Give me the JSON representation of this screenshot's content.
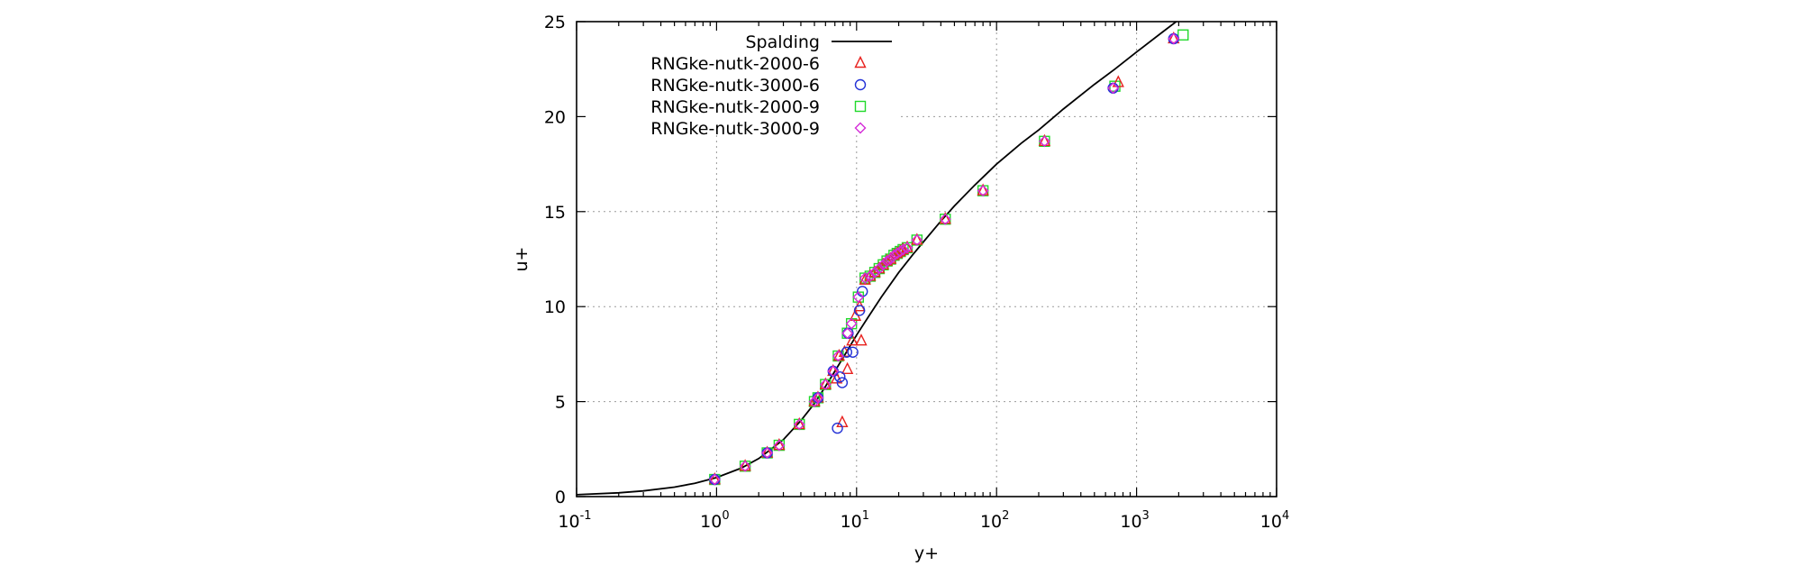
{
  "chart_data": {
    "type": "scatter",
    "title": "",
    "xlabel": "y+",
    "ylabel": "u+",
    "xscale": "log",
    "xlim": [
      0.1,
      10000
    ],
    "ylim": [
      0,
      25
    ],
    "grid": true,
    "legend_placement": "top-left",
    "x_ticks": [
      {
        "base": "10",
        "exp": "-1",
        "value": 0.1
      },
      {
        "base": "10",
        "exp": "0",
        "value": 1
      },
      {
        "base": "10",
        "exp": "1",
        "value": 10
      },
      {
        "base": "10",
        "exp": "2",
        "value": 100
      },
      {
        "base": "10",
        "exp": "3",
        "value": 1000
      },
      {
        "base": "10",
        "exp": "4",
        "value": 10000
      }
    ],
    "y_ticks": [
      {
        "label": "0",
        "value": 0
      },
      {
        "label": "5",
        "value": 5
      },
      {
        "label": "10",
        "value": 10
      },
      {
        "label": "15",
        "value": 15
      },
      {
        "label": "20",
        "value": 20
      },
      {
        "label": "25",
        "value": 25
      }
    ],
    "series": [
      {
        "name": "Spalding",
        "kind": "line",
        "color": "#000000",
        "x": [
          0.1,
          0.2,
          0.3,
          0.5,
          0.7,
          1.0,
          1.5,
          2,
          3,
          4,
          5,
          6,
          7,
          8,
          10,
          12,
          15,
          20,
          25,
          30,
          40,
          50,
          70,
          100,
          150,
          200,
          300,
          500,
          700,
          1000,
          1500,
          2000,
          2600
        ],
        "y": [
          0.1,
          0.2,
          0.3,
          0.5,
          0.7,
          1.0,
          1.5,
          2.0,
          3.0,
          4.0,
          4.9,
          5.8,
          6.6,
          7.3,
          8.5,
          9.4,
          10.5,
          11.8,
          12.7,
          13.4,
          14.5,
          15.3,
          16.4,
          17.5,
          18.6,
          19.3,
          20.4,
          21.7,
          22.5,
          23.4,
          24.4,
          25.1,
          25.7
        ]
      },
      {
        "name": "RNGke-nutk-2000-6",
        "kind": "points",
        "marker": "triangle",
        "color": "#e8211e",
        "x": [
          0.97,
          1.6,
          2.3,
          2.8,
          3.9,
          5.0,
          5.3,
          6.0,
          6.8,
          7.2,
          7.5,
          7.9,
          8.2,
          8.6,
          9.3,
          10.8,
          9.8,
          10.5,
          11.5,
          12.5,
          13.5,
          14.5,
          15.5,
          16.5,
          17.5,
          18.5,
          19.5,
          20.5,
          21.5,
          23,
          27,
          43,
          80,
          220,
          740,
          1840
        ],
        "y": [
          0.9,
          1.6,
          2.3,
          2.7,
          3.8,
          5.0,
          5.2,
          5.9,
          6.6,
          6.2,
          7.4,
          3.9,
          7.6,
          6.7,
          8.2,
          8.2,
          9.5,
          10.0,
          11.4,
          11.6,
          11.8,
          12.0,
          12.2,
          12.4,
          12.5,
          12.7,
          12.8,
          12.9,
          13.0,
          13.1,
          13.5,
          14.6,
          16.1,
          18.7,
          21.8,
          24.1
        ]
      },
      {
        "name": "RNGke-nutk-3000-6",
        "kind": "points",
        "marker": "circle",
        "color": "#2331d6",
        "x": [
          0.97,
          2.3,
          5.3,
          6.8,
          7.3,
          7.6,
          7.9,
          8.5,
          8.7,
          9.4,
          10.5,
          11.0,
          680,
          1840
        ],
        "y": [
          0.9,
          2.3,
          5.2,
          6.6,
          3.6,
          6.3,
          6.0,
          7.6,
          8.6,
          7.6,
          9.8,
          10.8,
          21.5,
          24.1
        ]
      },
      {
        "name": "RNGke-nutk-2000-9",
        "kind": "points",
        "marker": "square",
        "color": "#21d92b",
        "x": [
          0.97,
          1.6,
          2.3,
          2.8,
          3.9,
          5.0,
          5.3,
          6.0,
          7.4,
          8.6,
          9.2,
          10.3,
          11.5,
          12.5,
          13.5,
          14.5,
          15.5,
          16.5,
          17.5,
          18.5,
          19.5,
          20.5,
          21.5,
          23,
          27,
          43,
          80,
          220,
          700,
          2150
        ],
        "y": [
          0.9,
          1.6,
          2.3,
          2.7,
          3.8,
          5.0,
          5.2,
          5.9,
          7.4,
          8.6,
          9.1,
          10.5,
          11.5,
          11.6,
          11.8,
          12.0,
          12.2,
          12.4,
          12.5,
          12.7,
          12.8,
          12.9,
          13.0,
          13.1,
          13.5,
          14.6,
          16.1,
          18.7,
          21.6,
          24.3
        ]
      },
      {
        "name": "RNGke-nutk-3000-9",
        "kind": "points",
        "marker": "diamond",
        "color": "#d42ad8",
        "x": [
          0.97,
          1.6,
          2.3,
          2.8,
          3.9,
          5.0,
          5.3,
          6.0,
          6.8,
          7.4,
          8.6,
          9.2,
          10.3,
          11.5,
          12.5,
          13.5,
          14.5,
          15.5,
          16.5,
          17.5,
          18.5,
          19.5,
          20.5,
          21.5,
          23,
          27,
          43,
          80,
          220,
          680,
          1840
        ],
        "y": [
          0.9,
          1.6,
          2.3,
          2.7,
          3.8,
          5.0,
          5.2,
          5.9,
          6.6,
          7.4,
          8.6,
          9.1,
          10.5,
          11.5,
          11.6,
          11.8,
          12.0,
          12.2,
          12.4,
          12.5,
          12.7,
          12.8,
          12.9,
          13.0,
          13.1,
          13.5,
          14.6,
          16.1,
          18.7,
          21.5,
          24.1
        ]
      }
    ]
  }
}
